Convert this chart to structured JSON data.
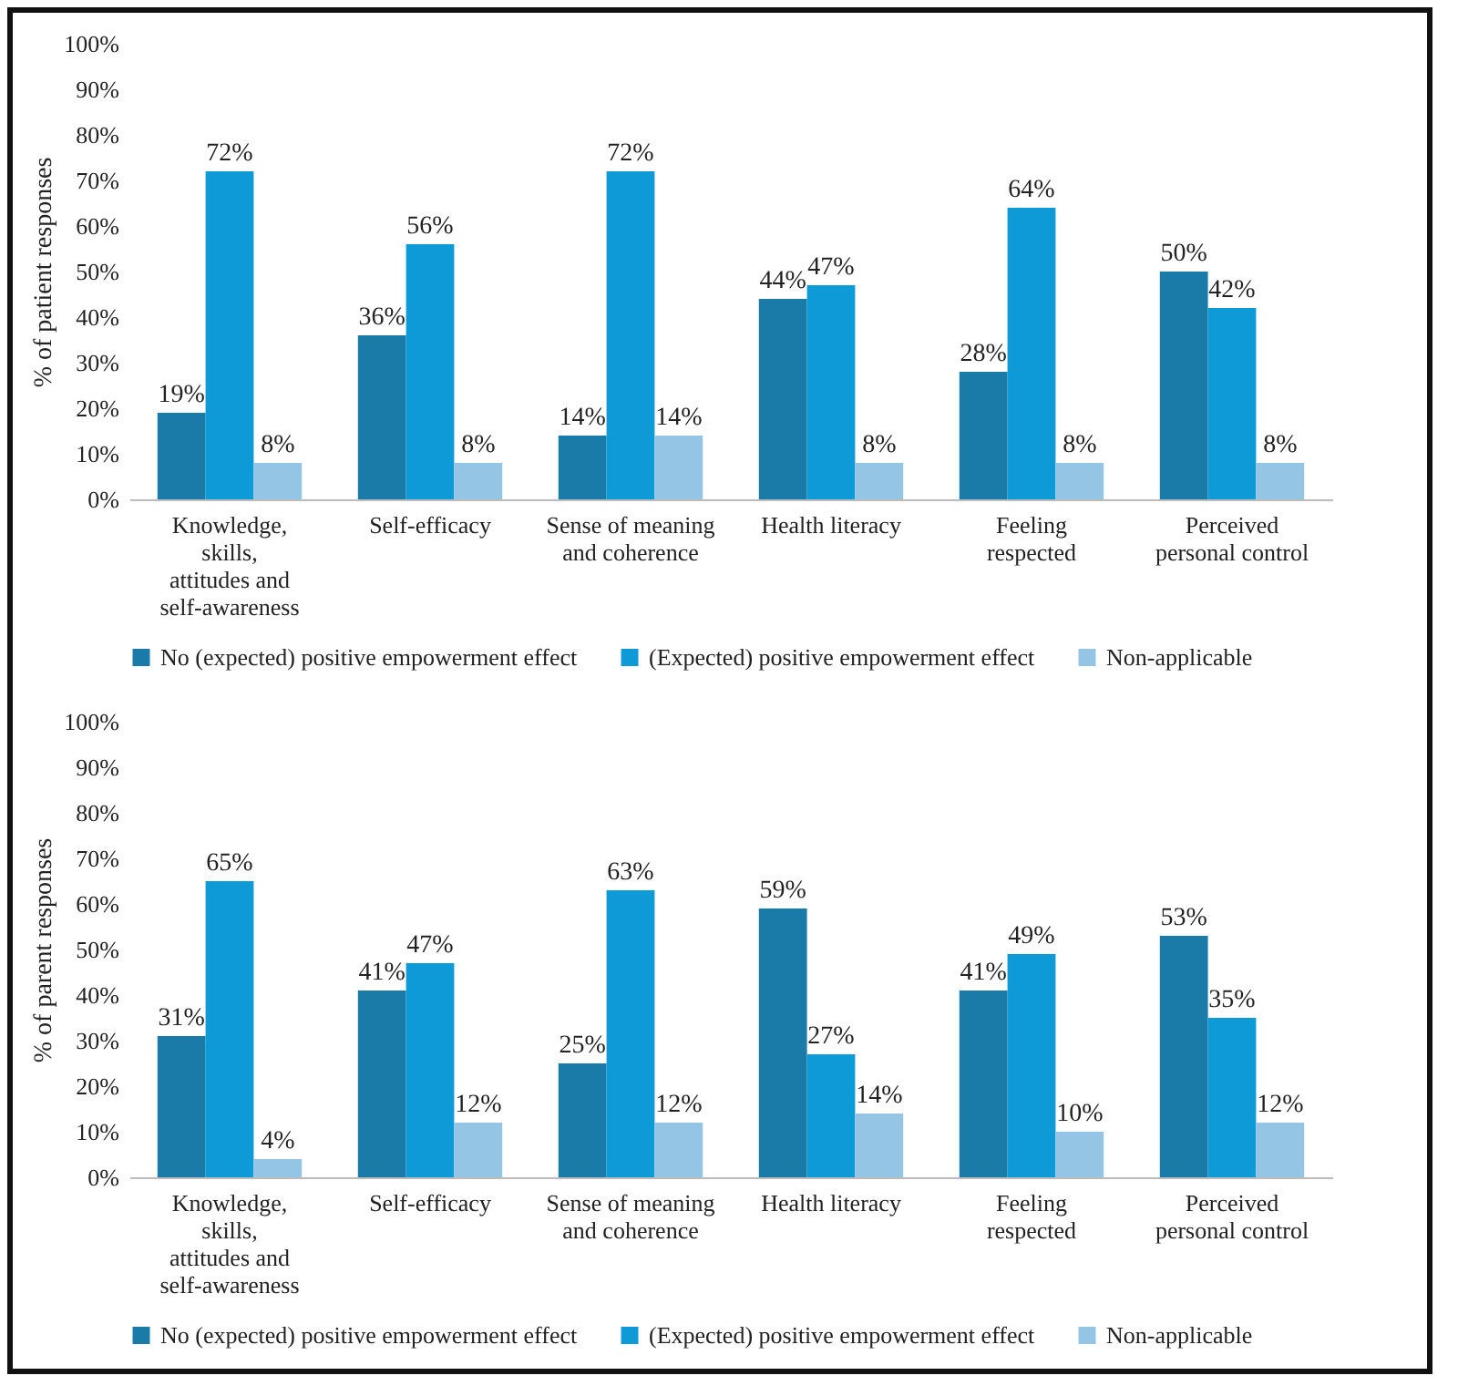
{
  "chart_data": [
    {
      "type": "bar",
      "ylabel": "% of patient responses",
      "categories": [
        "Knowledge, skills, attitudes and self-awareness",
        "Self-efficacy",
        "Sense of meaning and coherence",
        "Health literacy",
        "Feeling respected",
        "Perceived personal control"
      ],
      "series": [
        {
          "name": "No (expected) positive empowerment effect",
          "color": "#1a7aa8",
          "values": [
            19,
            36,
            14,
            44,
            28,
            50
          ],
          "value_labels": [
            "19%",
            "36%",
            "14%",
            "44%",
            "28%",
            "50%"
          ]
        },
        {
          "name": "(Expected) positive empowerment effect",
          "color": "#0e9ad6",
          "values": [
            72,
            56,
            72,
            47,
            64,
            42
          ],
          "value_labels": [
            "72%",
            "56%",
            "72%",
            "47%",
            "64%",
            "42%"
          ]
        },
        {
          "name": "Non-applicable",
          "color": "#95c5e5",
          "values": [
            8,
            8,
            14,
            8,
            8,
            8
          ],
          "value_labels": [
            "8%",
            "8%",
            "14%",
            "8%",
            "8%",
            "8%"
          ]
        }
      ],
      "ylim": [
        0,
        100
      ],
      "yticks": [
        {
          "value": 0,
          "label": "0%"
        },
        {
          "value": 10,
          "label": "10%"
        },
        {
          "value": 20,
          "label": "20%"
        },
        {
          "value": 30,
          "label": "30%"
        },
        {
          "value": 40,
          "label": "40%"
        },
        {
          "value": 50,
          "label": "50%"
        },
        {
          "value": 60,
          "label": "60%"
        },
        {
          "value": 70,
          "label": "70%"
        },
        {
          "value": 80,
          "label": "80%"
        },
        {
          "value": 90,
          "label": "90%"
        },
        {
          "value": 100,
          "label": "100%"
        }
      ],
      "grid": false,
      "legend": "bottom"
    },
    {
      "type": "bar",
      "ylabel": "% of parent responses",
      "categories": [
        "Knowledge, skills, attitudes and self-awareness",
        "Self-efficacy",
        "Sense of meaning and coherence",
        "Health literacy",
        "Feeling respected",
        "Perceived personal control"
      ],
      "series": [
        {
          "name": "No (expected) positive empowerment effect",
          "color": "#1a7aa8",
          "values": [
            31,
            41,
            25,
            59,
            41,
            53
          ],
          "value_labels": [
            "31%",
            "41%",
            "25%",
            "59%",
            "41%",
            "53%"
          ]
        },
        {
          "name": "(Expected) positive empowerment effect",
          "color": "#0e9ad6",
          "values": [
            65,
            47,
            63,
            27,
            49,
            35
          ],
          "value_labels": [
            "65%",
            "47%",
            "63%",
            "27%",
            "49%",
            "35%"
          ]
        },
        {
          "name": "Non-applicable",
          "color": "#95c5e5",
          "values": [
            4,
            12,
            12,
            14,
            10,
            12
          ],
          "value_labels": [
            "4%",
            "12%",
            "12%",
            "14%",
            "10%",
            "12%"
          ]
        }
      ],
      "ylim": [
        0,
        100
      ],
      "yticks": [
        {
          "value": 0,
          "label": "0%"
        },
        {
          "value": 10,
          "label": "10%"
        },
        {
          "value": 20,
          "label": "20%"
        },
        {
          "value": 30,
          "label": "30%"
        },
        {
          "value": 40,
          "label": "40%"
        },
        {
          "value": 50,
          "label": "50%"
        },
        {
          "value": 60,
          "label": "60%"
        },
        {
          "value": 70,
          "label": "70%"
        },
        {
          "value": 80,
          "label": "80%"
        },
        {
          "value": 90,
          "label": "90%"
        },
        {
          "value": 100,
          "label": "100%"
        }
      ],
      "grid": false,
      "legend": "bottom"
    }
  ]
}
